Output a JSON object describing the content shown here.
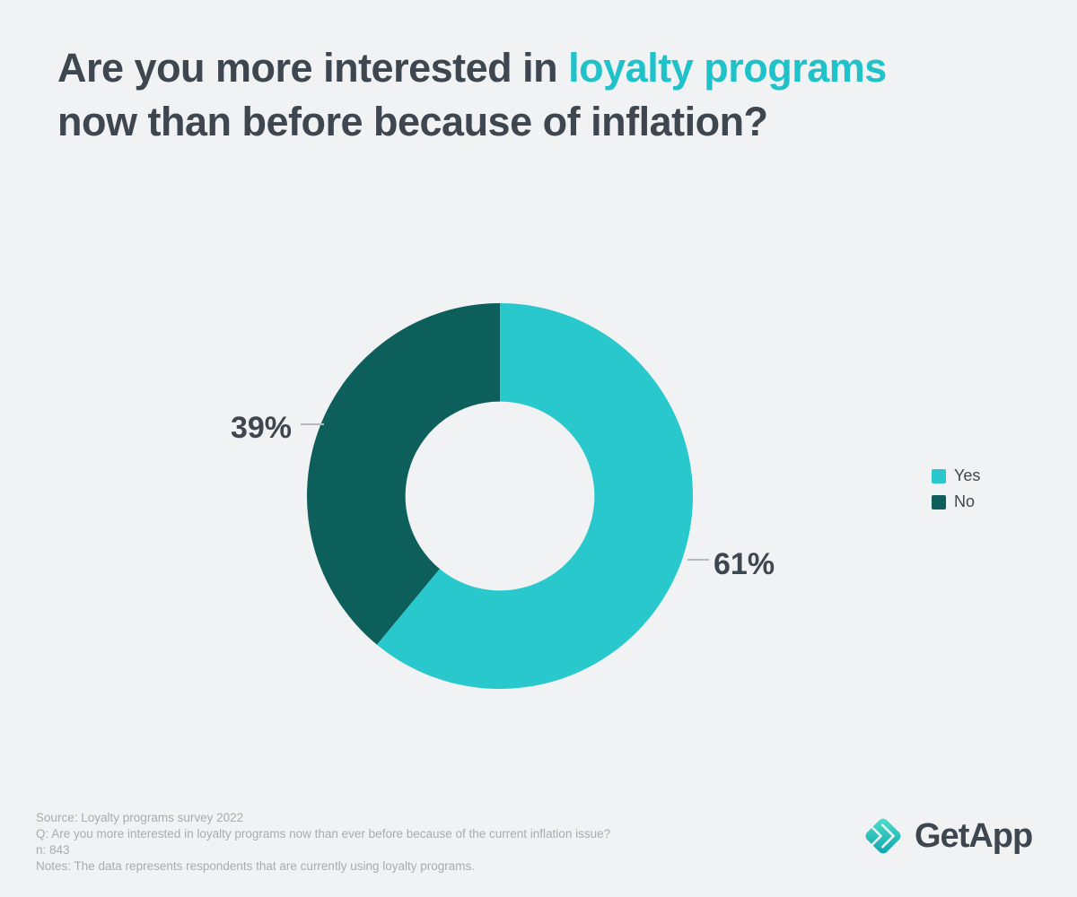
{
  "title": {
    "line1_regular": "Are you more interested in ",
    "line1_highlight": "loyalty programs",
    "line2": "now than before because of inflation?"
  },
  "chart_data": {
    "type": "pie",
    "subtype": "donut",
    "title": "Are you more interested in loyalty programs now than before because of inflation?",
    "categories": [
      "Yes",
      "No"
    ],
    "values": [
      61,
      39
    ],
    "unit": "%",
    "data_labels": [
      "61%",
      "39%"
    ],
    "colors": [
      "#29C8CD",
      "#0C5F5B"
    ],
    "start_angle_deg": 0,
    "direction": "clockwise",
    "inner_radius_ratio": 0.49,
    "legend_position": "right",
    "grid": false
  },
  "legend": {
    "items": [
      {
        "label": "Yes",
        "color": "#29C8CD"
      },
      {
        "label": "No",
        "color": "#0C5F5B"
      }
    ]
  },
  "footer": {
    "source": "Source: Loyalty programs survey 2022",
    "question": "Q: Are you more interested in loyalty programs now than ever before because of the current inflation issue?",
    "n": "n: 843",
    "notes": "Notes: The data represents respondents that are currently using loyalty programs."
  },
  "logo": {
    "text": "GetApp"
  },
  "palette": {
    "background": "#F1F2F3",
    "title_text": "#3E4750",
    "title_highlight": "#1FC2C9",
    "label_text": "#3E4750",
    "footnote_text": "#A7ACB1",
    "leader_line": "#B6BBC0"
  }
}
